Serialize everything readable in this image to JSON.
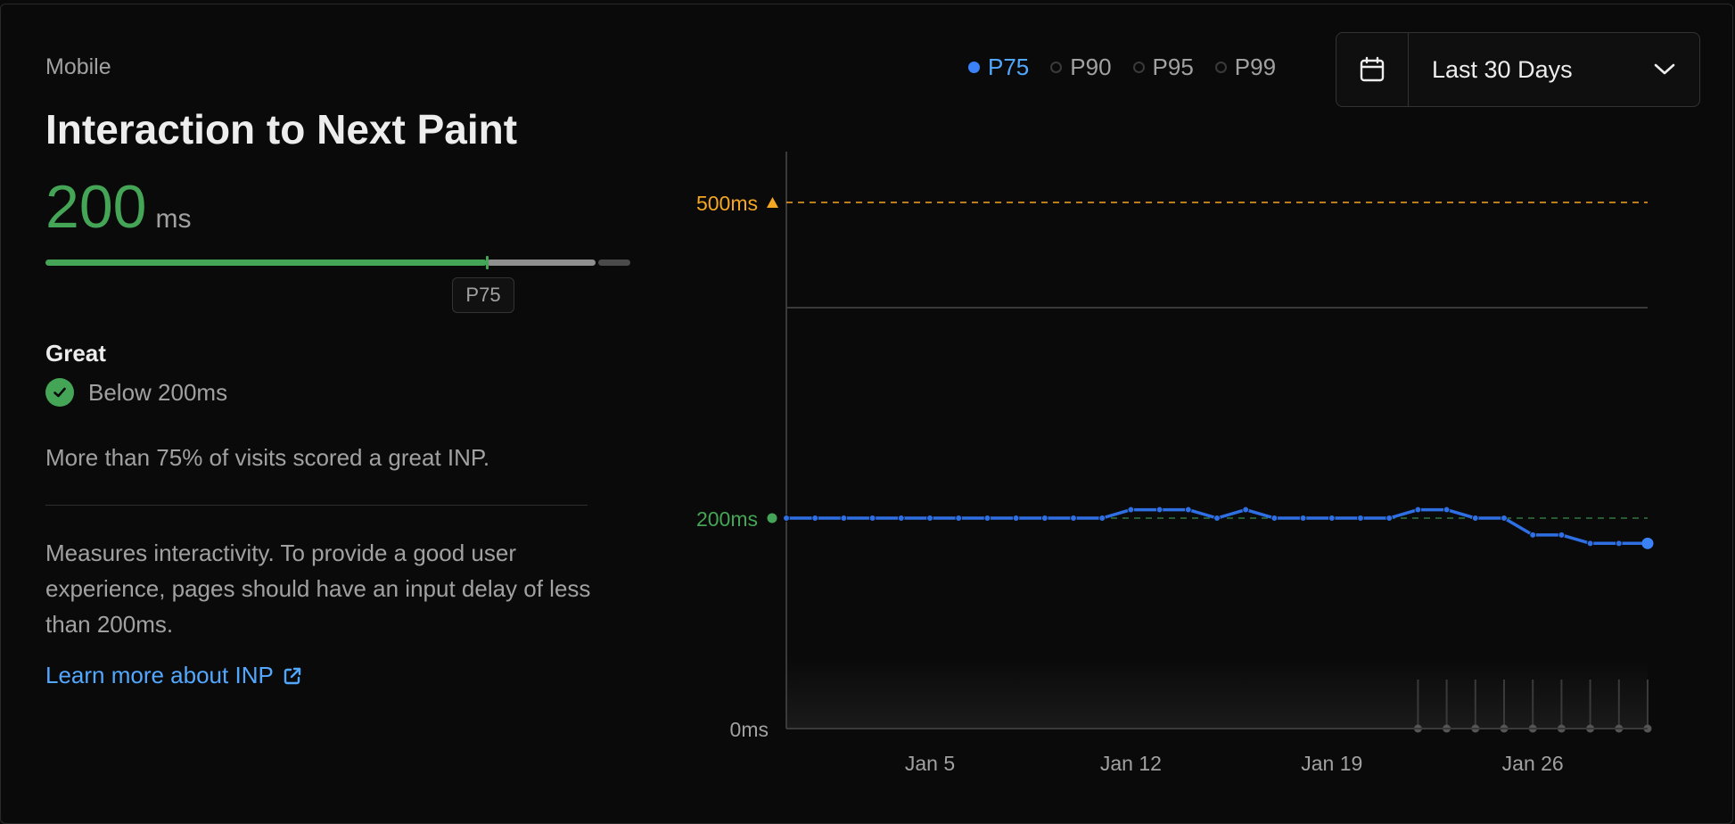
{
  "card": {
    "device": "Mobile",
    "title": "Interaction to Next Paint",
    "value": "200",
    "unit": "ms",
    "bar": {
      "score_fraction": 0.754,
      "segments": [
        {
          "from": 0,
          "to": 0.754,
          "color": "#45a557"
        },
        {
          "from": 0.754,
          "to": 0.94,
          "color": "#8f8f8f"
        },
        {
          "from": 0.945,
          "to": 1.0,
          "color": "#4a4a4a"
        }
      ]
    },
    "marker_label": "P75",
    "rating": "Great",
    "threshold_text": "Below 200ms",
    "summary": "More than 75% of visits scored a great INP.",
    "description": "Measures interactivity. To provide a good user experience, pages should have an input delay of less than 200ms.",
    "learn_more": "Learn more about INP",
    "icons": {
      "check": "check-circle-icon",
      "external": "external-link-icon"
    }
  },
  "legend": [
    {
      "label": "P75",
      "active": true,
      "color": "#3b82f6"
    },
    {
      "label": "P90",
      "active": false,
      "color": "#a1a1a1"
    },
    {
      "label": "P95",
      "active": false,
      "color": "#a1a1a1"
    },
    {
      "label": "P99",
      "active": false,
      "color": "#a1a1a1"
    }
  ],
  "date_range": {
    "label": "Last 30 Days",
    "icon": "calendar-icon",
    "chevron": "chevron-down-icon"
  },
  "colors": {
    "good": "#45a557",
    "poor": "#f5a623",
    "line": "#2f6fe4",
    "link": "#52a8ff"
  },
  "chart_data": {
    "type": "line",
    "x_start": "Dec 31",
    "x_end": "Jan 30",
    "x_tick_labels": [
      {
        "label": "Jan 5",
        "date": "Jan 5"
      },
      {
        "label": "Jan 12",
        "date": "Jan 12"
      },
      {
        "label": "Jan 19",
        "date": "Jan 19"
      },
      {
        "label": "Jan 26",
        "date": "Jan 26"
      }
    ],
    "y_tick_labels": [
      {
        "label": "500ms",
        "value": 500,
        "color": "#f5a623",
        "marker": "triangle",
        "dashed": true
      },
      {
        "label": "200ms",
        "value": 200,
        "color": "#45a557",
        "marker": "dot",
        "dashed": true
      },
      {
        "label": "0ms",
        "value": 0,
        "color": "#a1a1a1",
        "marker": "none",
        "dashed": false
      }
    ],
    "ylim": [
      0,
      550
    ],
    "gridlines": [
      400
    ],
    "series": [
      {
        "name": "P75",
        "color": "#2f6fe4",
        "points": [
          {
            "x": "Dec 31",
            "y": 200
          },
          {
            "x": "Jan 1",
            "y": 200
          },
          {
            "x": "Jan 2",
            "y": 200
          },
          {
            "x": "Jan 3",
            "y": 200
          },
          {
            "x": "Jan 4",
            "y": 200
          },
          {
            "x": "Jan 5",
            "y": 200
          },
          {
            "x": "Jan 6",
            "y": 200
          },
          {
            "x": "Jan 7",
            "y": 200
          },
          {
            "x": "Jan 8",
            "y": 200
          },
          {
            "x": "Jan 9",
            "y": 200
          },
          {
            "x": "Jan 10",
            "y": 200
          },
          {
            "x": "Jan 11",
            "y": 200
          },
          {
            "x": "Jan 12",
            "y": 208
          },
          {
            "x": "Jan 13",
            "y": 208
          },
          {
            "x": "Jan 14",
            "y": 208
          },
          {
            "x": "Jan 15",
            "y": 200
          },
          {
            "x": "Jan 16",
            "y": 208
          },
          {
            "x": "Jan 17",
            "y": 200
          },
          {
            "x": "Jan 18",
            "y": 200
          },
          {
            "x": "Jan 19",
            "y": 200
          },
          {
            "x": "Jan 20",
            "y": 200
          },
          {
            "x": "Jan 21",
            "y": 200
          },
          {
            "x": "Jan 22",
            "y": 208
          },
          {
            "x": "Jan 23",
            "y": 208
          },
          {
            "x": "Jan 24",
            "y": 200
          },
          {
            "x": "Jan 25",
            "y": 200
          },
          {
            "x": "Jan 26",
            "y": 184
          },
          {
            "x": "Jan 27",
            "y": 184
          },
          {
            "x": "Jan 28",
            "y": 176
          },
          {
            "x": "Jan 29",
            "y": 176
          },
          {
            "x": "Jan 30",
            "y": 176
          }
        ]
      }
    ],
    "volume_marker_dates": [
      "Jan 22",
      "Jan 23",
      "Jan 24",
      "Jan 25",
      "Jan 26",
      "Jan 27",
      "Jan 28",
      "Jan 29",
      "Jan 30"
    ],
    "grid": false,
    "legend_position": "top-right"
  }
}
